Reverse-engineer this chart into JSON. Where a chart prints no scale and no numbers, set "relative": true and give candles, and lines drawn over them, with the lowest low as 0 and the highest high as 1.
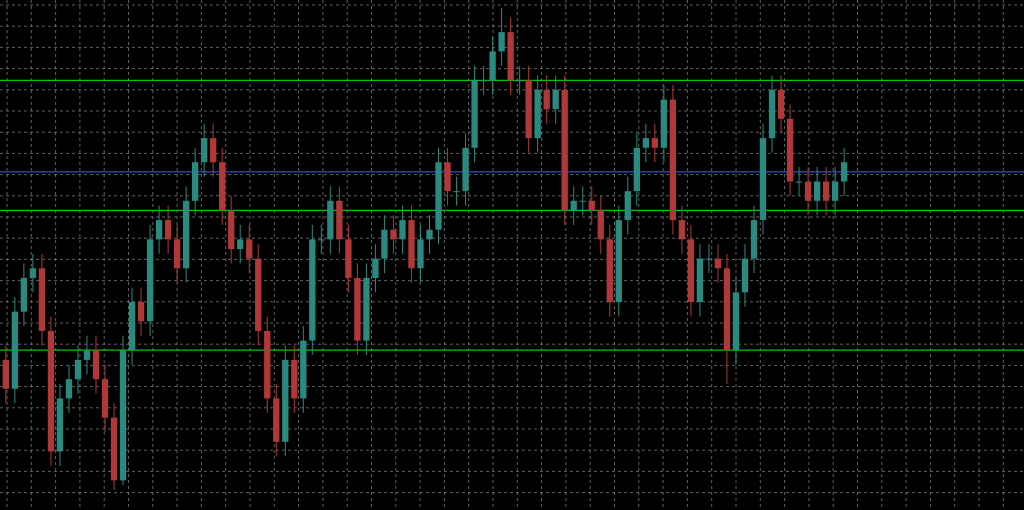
{
  "chart_data": {
    "type": "candlestick",
    "relative": true,
    "grid": true,
    "categories": [
      null,
      null,
      null,
      null,
      null,
      null,
      null,
      null,
      null,
      null,
      null,
      null,
      null,
      null,
      null,
      null,
      null,
      null,
      null,
      null,
      null,
      null,
      null,
      null,
      null,
      null,
      null,
      null,
      null,
      null,
      null,
      null,
      null,
      null,
      null,
      null,
      null,
      null,
      null,
      null,
      null,
      null,
      null,
      null,
      null,
      null,
      null,
      null,
      null,
      null,
      null,
      null,
      null,
      null,
      null,
      null,
      null,
      null,
      null,
      null,
      null,
      null,
      null,
      null,
      null,
      null,
      null,
      null,
      null,
      null,
      null,
      null,
      null,
      null,
      null,
      null,
      null,
      null,
      null,
      null,
      null,
      null,
      null,
      null,
      null,
      null,
      null,
      null,
      null,
      null,
      null,
      null,
      null,
      null
    ],
    "ohlc": [
      [
        0.27,
        0.3,
        0.18,
        0.21
      ],
      [
        0.21,
        0.4,
        0.18,
        0.37
      ],
      [
        0.37,
        0.47,
        0.34,
        0.44
      ],
      [
        0.44,
        0.49,
        0.41,
        0.46
      ],
      [
        0.46,
        0.49,
        0.3,
        0.33
      ],
      [
        0.33,
        0.36,
        0.05,
        0.08
      ],
      [
        0.08,
        0.22,
        0.05,
        0.19
      ],
      [
        0.19,
        0.26,
        0.16,
        0.23
      ],
      [
        0.23,
        0.3,
        0.2,
        0.27
      ],
      [
        0.27,
        0.32,
        0.24,
        0.29
      ],
      [
        0.29,
        0.32,
        0.2,
        0.23
      ],
      [
        0.23,
        0.26,
        0.12,
        0.15
      ],
      [
        0.15,
        0.18,
        0.0,
        0.02
      ],
      [
        0.02,
        0.32,
        0.01,
        0.29
      ],
      [
        0.29,
        0.42,
        0.26,
        0.39
      ],
      [
        0.39,
        0.42,
        0.32,
        0.35
      ],
      [
        0.35,
        0.55,
        0.32,
        0.52
      ],
      [
        0.52,
        0.59,
        0.49,
        0.56
      ],
      [
        0.56,
        0.59,
        0.49,
        0.52
      ],
      [
        0.52,
        0.55,
        0.43,
        0.46
      ],
      [
        0.46,
        0.63,
        0.43,
        0.6
      ],
      [
        0.6,
        0.71,
        0.57,
        0.68
      ],
      [
        0.68,
        0.76,
        0.65,
        0.73
      ],
      [
        0.73,
        0.76,
        0.65,
        0.68
      ],
      [
        0.68,
        0.71,
        0.55,
        0.58
      ],
      [
        0.58,
        0.61,
        0.47,
        0.5
      ],
      [
        0.5,
        0.55,
        0.47,
        0.52
      ],
      [
        0.52,
        0.55,
        0.45,
        0.48
      ],
      [
        0.48,
        0.51,
        0.3,
        0.33
      ],
      [
        0.33,
        0.36,
        0.16,
        0.19
      ],
      [
        0.19,
        0.22,
        0.07,
        0.1
      ],
      [
        0.1,
        0.3,
        0.07,
        0.27
      ],
      [
        0.27,
        0.3,
        0.16,
        0.19
      ],
      [
        0.19,
        0.34,
        0.16,
        0.31
      ],
      [
        0.31,
        0.55,
        0.28,
        0.52
      ],
      [
        0.52,
        0.55,
        0.49,
        0.52
      ],
      [
        0.52,
        0.63,
        0.49,
        0.6
      ],
      [
        0.6,
        0.63,
        0.49,
        0.52
      ],
      [
        0.52,
        0.55,
        0.41,
        0.44
      ],
      [
        0.44,
        0.47,
        0.28,
        0.31
      ],
      [
        0.31,
        0.47,
        0.28,
        0.44
      ],
      [
        0.44,
        0.51,
        0.41,
        0.48
      ],
      [
        0.48,
        0.57,
        0.45,
        0.54
      ],
      [
        0.54,
        0.57,
        0.49,
        0.52
      ],
      [
        0.52,
        0.59,
        0.49,
        0.56
      ],
      [
        0.56,
        0.59,
        0.43,
        0.46
      ],
      [
        0.46,
        0.55,
        0.43,
        0.52
      ],
      [
        0.52,
        0.57,
        0.49,
        0.54
      ],
      [
        0.54,
        0.71,
        0.51,
        0.68
      ],
      [
        0.68,
        0.71,
        0.59,
        0.62
      ],
      [
        0.62,
        0.65,
        0.59,
        0.62
      ],
      [
        0.62,
        0.74,
        0.59,
        0.71
      ],
      [
        0.71,
        0.88,
        0.68,
        0.85
      ],
      [
        0.85,
        0.88,
        0.82,
        0.85
      ],
      [
        0.85,
        0.94,
        0.82,
        0.91
      ],
      [
        0.91,
        1.0,
        0.88,
        0.95
      ],
      [
        0.95,
        0.98,
        0.82,
        0.85
      ],
      [
        0.85,
        0.88,
        0.82,
        0.85
      ],
      [
        0.85,
        0.88,
        0.7,
        0.73
      ],
      [
        0.73,
        0.86,
        0.7,
        0.83
      ],
      [
        0.83,
        0.86,
        0.76,
        0.79
      ],
      [
        0.79,
        0.86,
        0.76,
        0.83
      ],
      [
        0.83,
        0.86,
        0.55,
        0.58
      ],
      [
        0.58,
        0.63,
        0.55,
        0.6
      ],
      [
        0.6,
        0.63,
        0.57,
        0.6
      ],
      [
        0.6,
        0.63,
        0.55,
        0.58
      ],
      [
        0.58,
        0.61,
        0.49,
        0.52
      ],
      [
        0.52,
        0.55,
        0.36,
        0.39
      ],
      [
        0.39,
        0.59,
        0.36,
        0.56
      ],
      [
        0.56,
        0.65,
        0.53,
        0.62
      ],
      [
        0.62,
        0.74,
        0.59,
        0.71
      ],
      [
        0.71,
        0.76,
        0.68,
        0.73
      ],
      [
        0.73,
        0.76,
        0.68,
        0.71
      ],
      [
        0.71,
        0.84,
        0.68,
        0.81
      ],
      [
        0.81,
        0.84,
        0.53,
        0.56
      ],
      [
        0.56,
        0.59,
        0.49,
        0.52
      ],
      [
        0.52,
        0.55,
        0.36,
        0.39
      ],
      [
        0.39,
        0.51,
        0.36,
        0.48
      ],
      [
        0.48,
        0.51,
        0.45,
        0.48
      ],
      [
        0.48,
        0.51,
        0.43,
        0.46
      ],
      [
        0.46,
        0.49,
        0.22,
        0.29
      ],
      [
        0.29,
        0.44,
        0.26,
        0.41
      ],
      [
        0.41,
        0.51,
        0.38,
        0.48
      ],
      [
        0.48,
        0.59,
        0.45,
        0.56
      ],
      [
        0.56,
        0.76,
        0.53,
        0.73
      ],
      [
        0.73,
        0.86,
        0.7,
        0.83
      ],
      [
        0.83,
        0.86,
        0.74,
        0.77
      ],
      [
        0.77,
        0.8,
        0.61,
        0.64
      ],
      [
        0.64,
        0.67,
        0.61,
        0.64
      ],
      [
        0.64,
        0.67,
        0.57,
        0.6
      ],
      [
        0.6,
        0.67,
        0.57,
        0.64
      ],
      [
        0.64,
        0.67,
        0.57,
        0.6
      ],
      [
        0.6,
        0.67,
        0.57,
        0.64
      ],
      [
        0.64,
        0.71,
        0.61,
        0.68
      ]
    ],
    "ref_lines": [
      {
        "axis": "y",
        "value": 0.85,
        "color": "#00c800"
      },
      {
        "axis": "y",
        "value": 0.66,
        "color": "#2f4fc0"
      },
      {
        "axis": "y",
        "value": 0.58,
        "color": "#00c800"
      },
      {
        "axis": "y",
        "value": 0.29,
        "color": "#00c800"
      }
    ]
  }
}
